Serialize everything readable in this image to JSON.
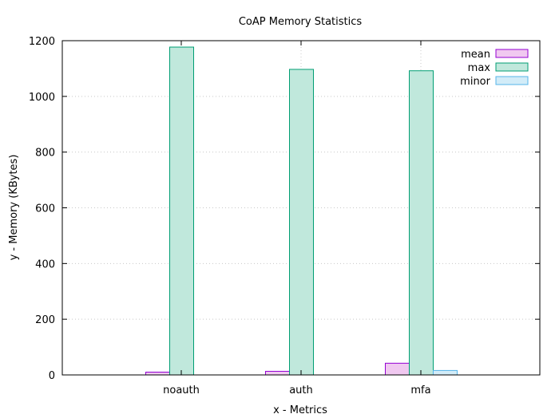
{
  "chart_data": {
    "type": "bar",
    "title": "CoAP Memory Statistics",
    "xlabel": "x - Metrics",
    "ylabel": "y - Memory (KBytes)",
    "categories": [
      "noauth",
      "auth",
      "mfa"
    ],
    "series": [
      {
        "name": "mean",
        "values": [
          10,
          13,
          42
        ],
        "fill": "#f0c8f0",
        "stroke": "#9400d3"
      },
      {
        "name": "max",
        "values": [
          1177,
          1097,
          1092
        ],
        "fill": "#c0e8dc",
        "stroke": "#009e73"
      },
      {
        "name": "minor",
        "values": [
          0,
          0,
          16
        ],
        "fill": "#d2ecf8",
        "stroke": "#56b4e9"
      }
    ],
    "ylim": [
      0,
      1200
    ],
    "yticks": [
      "0",
      "200",
      "400",
      "600",
      "800",
      "1000",
      "1200"
    ],
    "grid": true,
    "legend_position": "top-right"
  }
}
